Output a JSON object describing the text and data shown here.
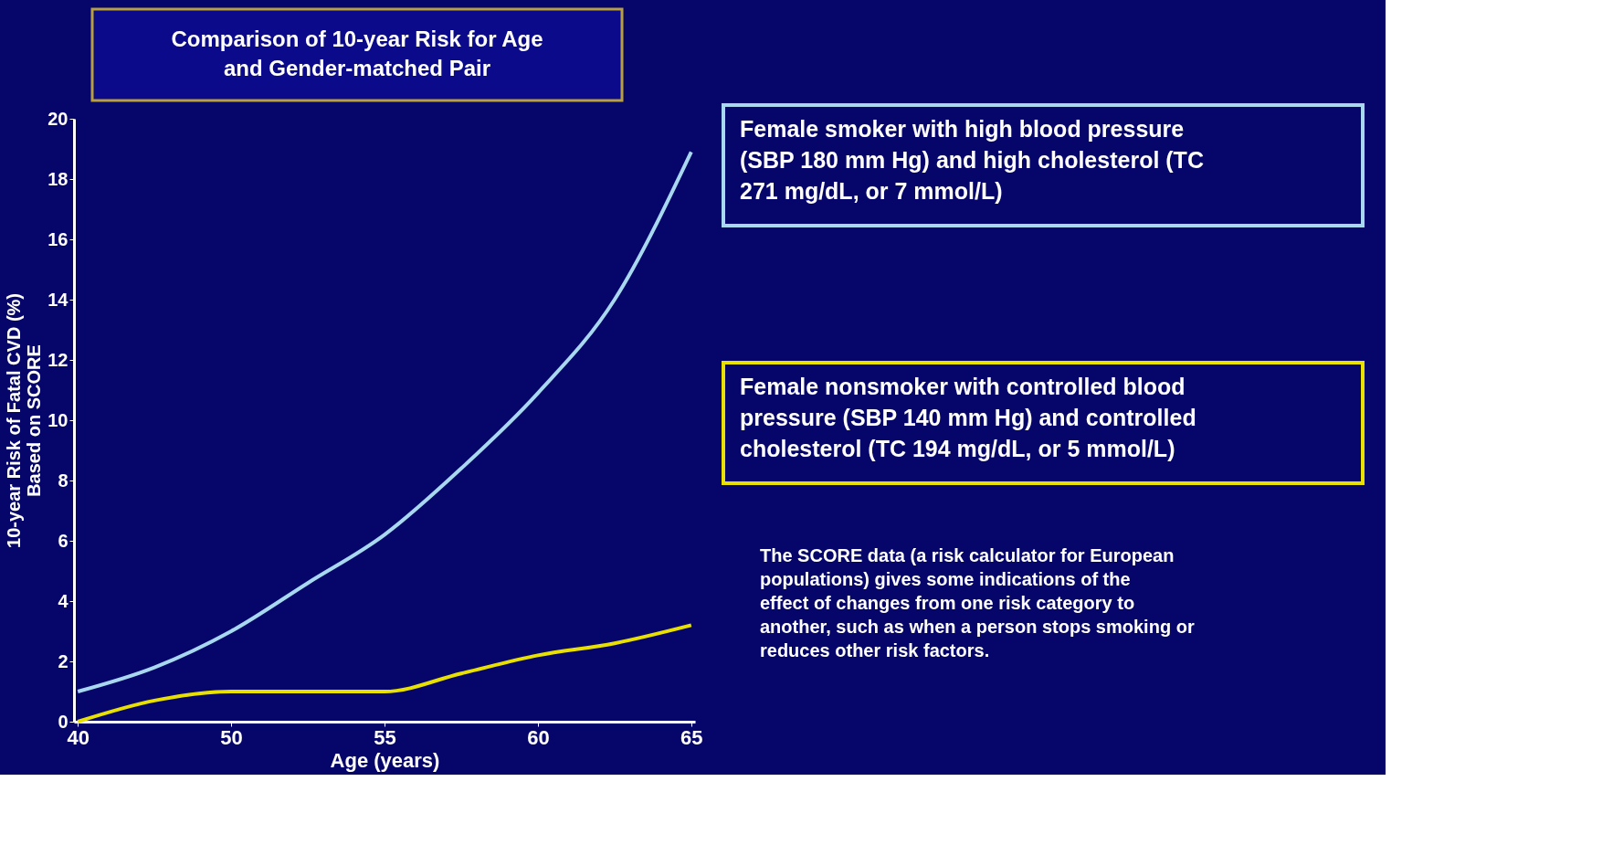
{
  "chart_data": {
    "type": "line",
    "title": "Comparison of 10-year Risk for Age and Gender-matched Pair",
    "xlabel": "Age (years)",
    "ylabel": "10-year Risk of Fatal CVD (%) Based on SCORE",
    "categories": [
      "40",
      null,
      "50",
      null,
      "55",
      null,
      "60",
      null,
      "65"
    ],
    "series": [
      {
        "name": "Female smoker with high blood pressure (SBP 180 mm Hg) and high cholesterol (TC 271 mg/dL, or 7 mmol/L)",
        "color": "#a8d8f0",
        "values": [
          1.0,
          1.8,
          3.0,
          4.6,
          6.2,
          8.4,
          10.9,
          14.0,
          18.9
        ]
      },
      {
        "name": "Female nonsmoker with controlled blood pressure (SBP 140 mm Hg) and controlled cholesterol (TC 194 mg/dL, or 5 mmol/L)",
        "color": "#e8e000",
        "values": [
          0.0,
          0.7,
          1.0,
          1.0,
          1.0,
          1.6,
          2.2,
          2.6,
          3.2
        ]
      }
    ],
    "ylim": [
      0,
      20
    ],
    "yticks": [
      0,
      2,
      4,
      6,
      8,
      10,
      12,
      14,
      16,
      18,
      20
    ],
    "grid": false,
    "legend": "right",
    "marker": "none",
    "line_style": "solid",
    "annotations": [
      "The SCORE data (a risk calculator for European populations) gives some indications of the effect of changes from one risk category to another, such as when a person stops smoking or reduces other risk factors."
    ]
  }
}
